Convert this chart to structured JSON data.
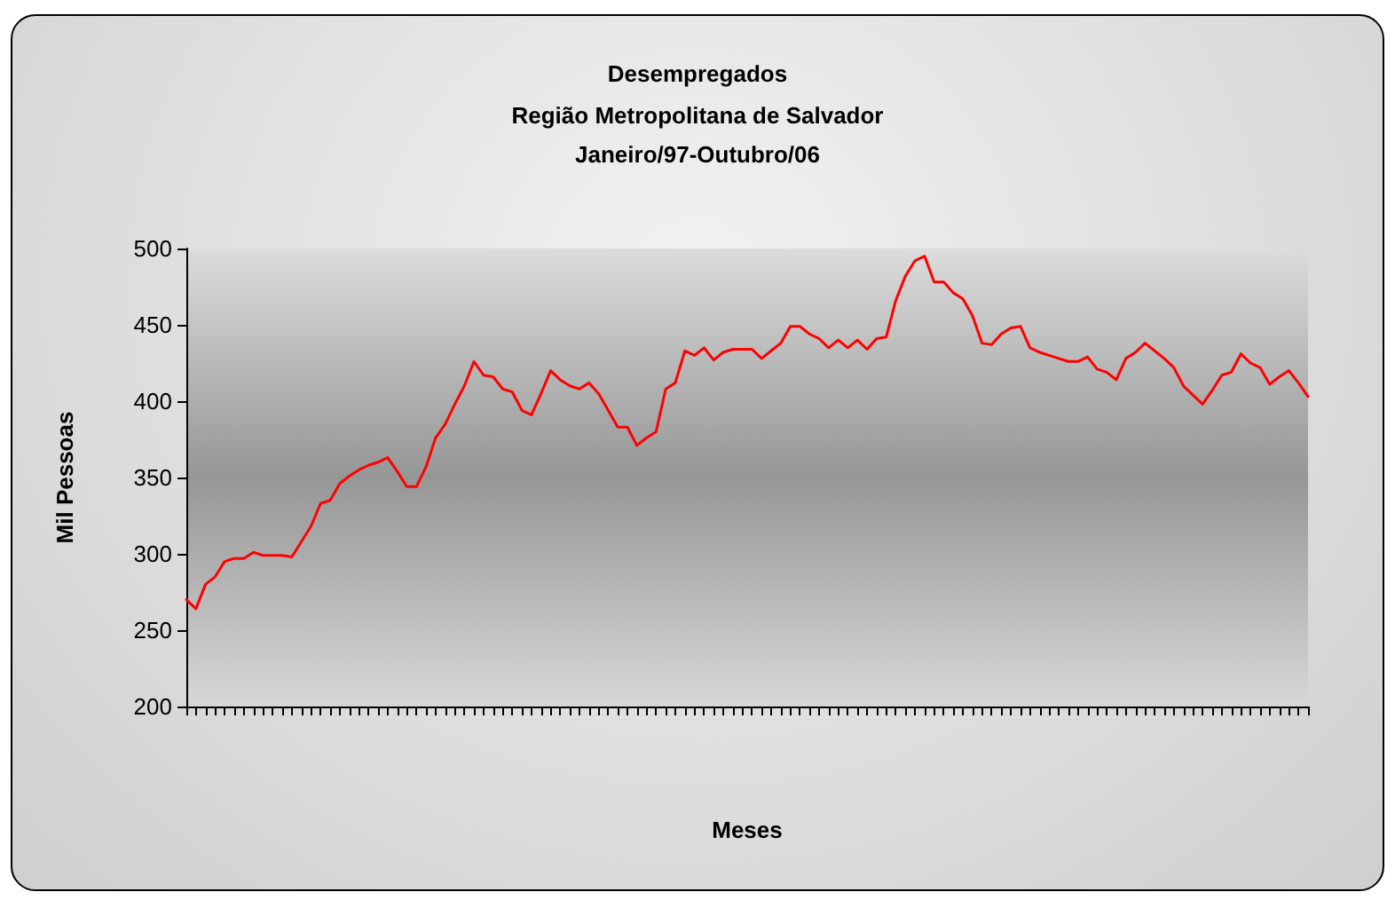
{
  "chart_data": {
    "type": "line",
    "title": "Desempregados",
    "subtitle": "Região Metropolitana de Salvador\nJaneiro/97-Outubro/06",
    "xlabel": "Meses",
    "ylabel": "Mil Pessoas",
    "categories": [
      null,
      null,
      null,
      null,
      null,
      null,
      null,
      null,
      null,
      null,
      null,
      null,
      null,
      null,
      null,
      null,
      null,
      null,
      null,
      null,
      null,
      null,
      null,
      null,
      null,
      null,
      null,
      null,
      null,
      null,
      null,
      null,
      null,
      null,
      null,
      null,
      null,
      null,
      null,
      null,
      null,
      null,
      null,
      null,
      null,
      null,
      null,
      null,
      null,
      null,
      null,
      null,
      null,
      null,
      null,
      null,
      null,
      null,
      null,
      null,
      null,
      null,
      null,
      null,
      null,
      null,
      null,
      null,
      null,
      null,
      null,
      null,
      null,
      null,
      null,
      null,
      null,
      null,
      null,
      null,
      null,
      null,
      null,
      null,
      null,
      null,
      null,
      null,
      null,
      null,
      null,
      null,
      null,
      null,
      null,
      null,
      null,
      null,
      null,
      null,
      null,
      null,
      null,
      null,
      null,
      null,
      null,
      null,
      null,
      null,
      null,
      null,
      null,
      null,
      null,
      null,
      null,
      null
    ],
    "series": [
      {
        "color": "#ff0000",
        "values": [
          270,
          264,
          280,
          285,
          295,
          297,
          297,
          301,
          299,
          299,
          299,
          298,
          308,
          318,
          333,
          335,
          346,
          351,
          355,
          358,
          360,
          363,
          354,
          344,
          344,
          357,
          376,
          385,
          398,
          410,
          426,
          417,
          416,
          408,
          406,
          394,
          391,
          405,
          420,
          414,
          410,
          408,
          412,
          405,
          394,
          383,
          383,
          371,
          376,
          380,
          408,
          412,
          433,
          430,
          435,
          427,
          432,
          434,
          434,
          434,
          428,
          433,
          438,
          449,
          449,
          444,
          441,
          435,
          440,
          435,
          440,
          434,
          441,
          442,
          466,
          482,
          492,
          495,
          478,
          478,
          471,
          467,
          456,
          438,
          437,
          444,
          448,
          449,
          435,
          432,
          430,
          428,
          426,
          426,
          429,
          421,
          419,
          414,
          428,
          432,
          438,
          433,
          428,
          422,
          410,
          404,
          398,
          407,
          417,
          419,
          431,
          425,
          422,
          411,
          416,
          420,
          412,
          403
        ]
      }
    ],
    "ylim": [
      200,
      500
    ],
    "yticks": [
      200,
      250,
      300,
      350,
      400,
      450,
      500
    ],
    "grid": false,
    "line_style": "solid",
    "tick_labels": "y"
  }
}
